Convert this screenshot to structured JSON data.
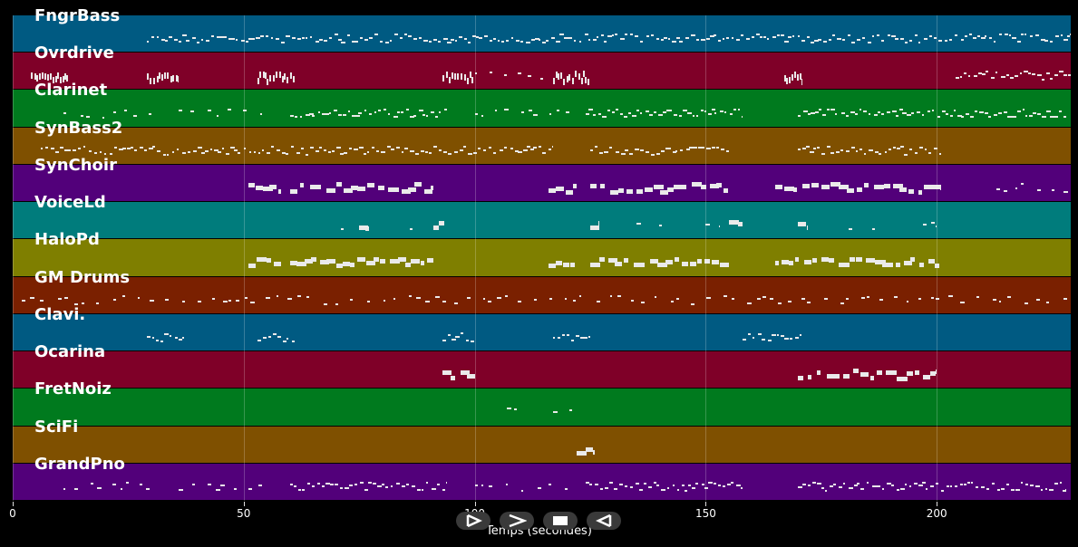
{
  "tracks": [
    {
      "label": "FngrBass",
      "color": "#005a82",
      "notes": [
        [
          29,
          229,
          "dense"
        ]
      ]
    },
    {
      "label": "Ovrdrive",
      "color": "#7f0028",
      "notes": [
        [
          4,
          12,
          "block"
        ],
        [
          29,
          36,
          "block"
        ],
        [
          53,
          61,
          "block"
        ],
        [
          93,
          100,
          "block"
        ],
        [
          100,
          117,
          "sparse"
        ],
        [
          117,
          125,
          "block"
        ],
        [
          167,
          171,
          "block"
        ],
        [
          204,
          229,
          "dense"
        ]
      ]
    },
    {
      "label": "Clarinet",
      "color": "#007a1e",
      "notes": [
        [
          11,
          30,
          "sparse"
        ],
        [
          36,
          54,
          "sparse"
        ],
        [
          60,
          94,
          "dense"
        ],
        [
          100,
          121,
          "sparse"
        ],
        [
          124,
          158,
          "dense"
        ],
        [
          170,
          228,
          "dense"
        ]
      ]
    },
    {
      "label": "SynBass2",
      "color": "#7f5000",
      "notes": [
        [
          6,
          117,
          "dense"
        ],
        [
          125,
          155,
          "dense"
        ],
        [
          170,
          201,
          "dense"
        ]
      ]
    },
    {
      "label": "SynChoir",
      "color": "#52007a",
      "notes": [
        [
          51,
          58,
          "thick"
        ],
        [
          60,
          91,
          "thick"
        ],
        [
          116,
          122,
          "thick"
        ],
        [
          125,
          156,
          "thick"
        ],
        [
          165,
          201,
          "thick"
        ],
        [
          213,
          229,
          "sparse"
        ]
      ]
    },
    {
      "label": "VoiceLd",
      "color": "#007c7c",
      "notes": [
        [
          71,
          73,
          "sparse"
        ],
        [
          75,
          78,
          "thick"
        ],
        [
          86,
          89,
          "sparse"
        ],
        [
          91,
          94,
          "thick"
        ],
        [
          125,
          127,
          "thick"
        ],
        [
          135,
          137,
          "sparse"
        ],
        [
          140,
          142,
          "sparse"
        ],
        [
          150,
          153,
          "sparse"
        ],
        [
          155,
          158,
          "thick"
        ],
        [
          170,
          172,
          "thick"
        ],
        [
          181,
          183,
          "sparse"
        ],
        [
          186,
          188,
          "sparse"
        ],
        [
          197,
          200,
          "sparse"
        ]
      ]
    },
    {
      "label": "HaloPd",
      "color": "#7f7f00",
      "notes": [
        [
          51,
          58,
          "thick"
        ],
        [
          60,
          91,
          "thick"
        ],
        [
          116,
          122,
          "thick"
        ],
        [
          125,
          155,
          "thick"
        ],
        [
          165,
          201,
          "thick"
        ]
      ]
    },
    {
      "label": "GM Drums",
      "color": "#7a2000",
      "notes": [
        [
          2,
          229,
          "sparse"
        ]
      ]
    },
    {
      "label": "Clavi.",
      "color": "#005a82",
      "notes": [
        [
          29,
          37,
          "dense"
        ],
        [
          53,
          61,
          "dense"
        ],
        [
          93,
          100,
          "dense"
        ],
        [
          117,
          125,
          "dense"
        ],
        [
          158,
          171,
          "dense"
        ]
      ]
    },
    {
      "label": "Ocarina",
      "color": "#7f0028",
      "notes": [
        [
          93,
          100,
          "thick"
        ],
        [
          170,
          200,
          "thick"
        ]
      ]
    },
    {
      "label": "FretNoiz",
      "color": "#007a1e",
      "notes": [
        [
          107,
          110,
          "sparse"
        ],
        [
          117,
          121,
          "sparse"
        ]
      ]
    },
    {
      "label": "SciFi",
      "color": "#7f5000",
      "notes": [
        [
          122,
          126,
          "thick"
        ]
      ]
    },
    {
      "label": "GrandPno",
      "color": "#52007a",
      "notes": [
        [
          11,
          30,
          "sparse"
        ],
        [
          36,
          54,
          "sparse"
        ],
        [
          60,
          94,
          "dense"
        ],
        [
          100,
          121,
          "sparse"
        ],
        [
          124,
          158,
          "dense"
        ],
        [
          170,
          228,
          "dense"
        ]
      ]
    }
  ],
  "axis": {
    "xmin": 0,
    "xmax": 229,
    "ticks": [
      0,
      50,
      100,
      150,
      200
    ],
    "xlabel": "Temps (secondes)"
  },
  "controls": [
    {
      "icon": "play-icon"
    },
    {
      "icon": "fast-forward-icon"
    },
    {
      "icon": "stop-icon"
    },
    {
      "icon": "rewind-icon"
    }
  ]
}
